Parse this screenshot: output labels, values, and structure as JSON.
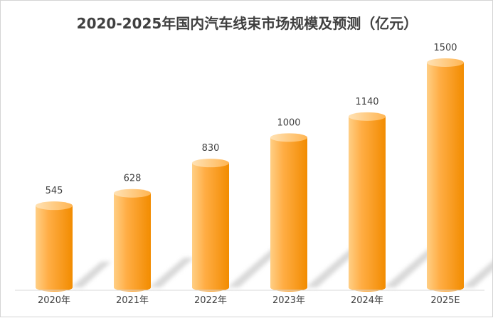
{
  "chart_data": {
    "type": "bar",
    "title": "2020-2025年国内汽车线束市场规模及预测（亿元）",
    "categories": [
      "2020年",
      "2021年",
      "2022年",
      "2023年",
      "2024年",
      "2025E"
    ],
    "values": [
      545,
      628,
      830,
      1000,
      1140,
      1500
    ],
    "data_labels": [
      "545",
      "628",
      "830",
      "1000",
      "1140",
      "1500"
    ],
    "ylim": [
      0,
      1500
    ],
    "grid": false,
    "legend": "none",
    "colors": {
      "bar_light": "#ffd9a0",
      "bar_mid": "#ffa733",
      "bar_dark": "#f08a00",
      "bar_top": "#ffc470",
      "label_text": "#404040",
      "axis": "#d9d9d9"
    }
  }
}
